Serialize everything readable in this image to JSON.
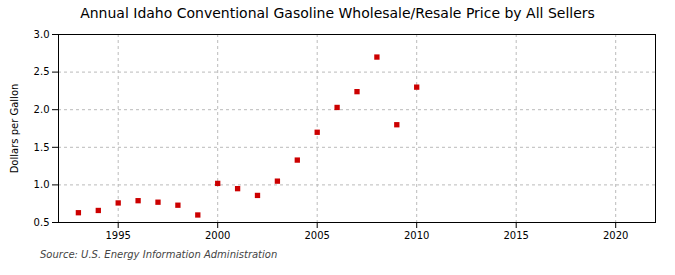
{
  "chart_data": {
    "type": "scatter",
    "title": "Annual Idaho Conventional Gasoline Wholesale/Resale Price by All Sellers",
    "ylabel": "Dollars per Gallon",
    "source": "Source: U.S. Energy Information Administration",
    "x": [
      1993,
      1994,
      1995,
      1996,
      1997,
      1998,
      1999,
      2000,
      2001,
      2002,
      2003,
      2004,
      2005,
      2006,
      2007,
      2008,
      2009,
      2010
    ],
    "values": [
      0.63,
      0.66,
      0.76,
      0.79,
      0.77,
      0.73,
      0.6,
      1.02,
      0.95,
      0.86,
      1.05,
      1.33,
      1.7,
      2.03,
      2.24,
      2.7,
      1.8,
      2.3
    ],
    "color": "#cc0000",
    "marker": "square",
    "xlim": [
      1992,
      2022
    ],
    "xticks": [
      1995,
      2000,
      2005,
      2010,
      2015,
      2020
    ],
    "ylim": [
      0.5,
      3.0
    ],
    "yticks": [
      0.5,
      {
        "value": 1.0,
        "label": "1.0"
      },
      1.5,
      {
        "value": 2.0,
        "label": "2.0"
      },
      2.5,
      {
        "value": 3.0,
        "label": "3.0"
      }
    ],
    "grid": true
  }
}
